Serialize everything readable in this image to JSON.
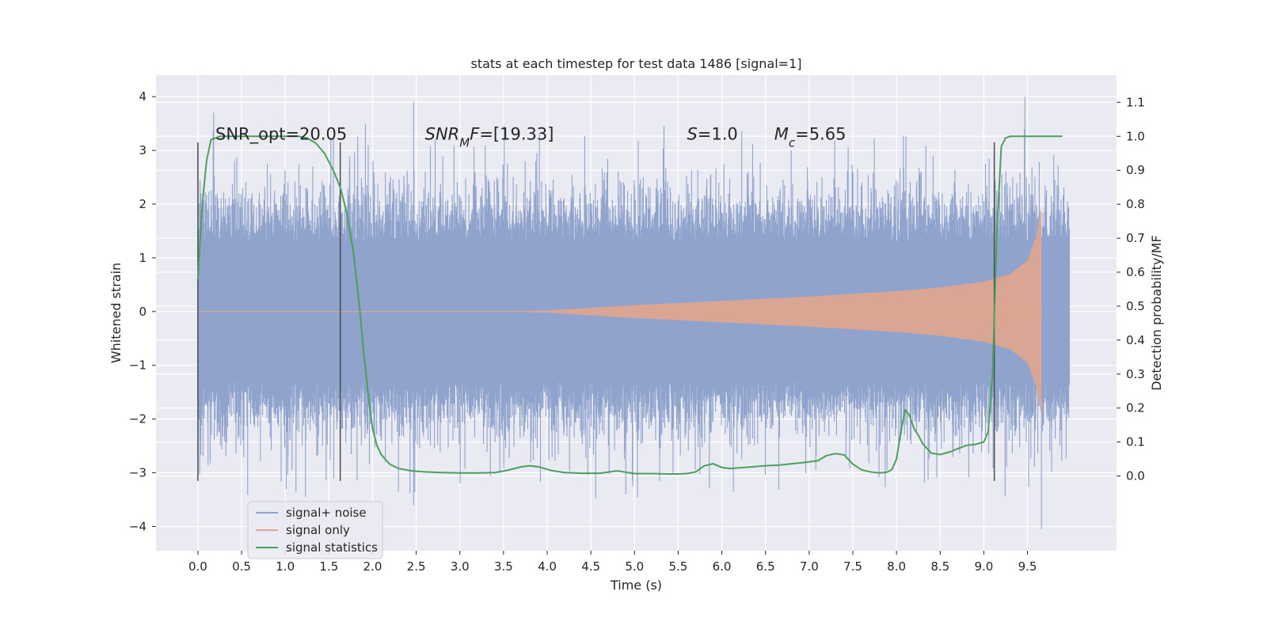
{
  "chart_data": {
    "type": "line",
    "title": "stats at each timestep for test data 1486 [signal=1]",
    "xlabel": "Time (s)",
    "ylabel": "Whitened strain",
    "ylabel_right": "Detection probability/MF",
    "xlim": [
      -0.48,
      10.52
    ],
    "ylim": [
      -4.45,
      4.4
    ],
    "ylim_right": [
      -0.22,
      1.18
    ],
    "x_ticks": [
      "0.0",
      "0.5",
      "1.0",
      "1.5",
      "2.0",
      "2.5",
      "3.0",
      "3.5",
      "4.0",
      "4.5",
      "5.0",
      "5.5",
      "6.0",
      "6.5",
      "7.0",
      "7.5",
      "8.0",
      "8.5",
      "9.0",
      "9.5"
    ],
    "y_ticks": [
      "−4",
      "−3",
      "−2",
      "−1",
      "0",
      "1",
      "2",
      "3",
      "4"
    ],
    "y_right_ticks": [
      "0.0",
      "0.1",
      "0.2",
      "0.3",
      "0.4",
      "0.5",
      "0.6",
      "0.7",
      "0.8",
      "0.9",
      "1.0",
      "1.1"
    ],
    "grid": true,
    "legend_position": "lower-left",
    "annotations": [
      {
        "text": "SNR_opt=20.05",
        "x": 0.2,
        "y": 3.2
      },
      {
        "text_parts": [
          {
            "t": "SNR",
            "italic": true
          },
          {
            "t": "M",
            "italic": true,
            "sub": true
          },
          {
            "t": "F",
            "italic": true
          },
          {
            "t": "=[19.33]"
          }
        ],
        "x": 2.6,
        "y": 3.2
      },
      {
        "text_parts": [
          {
            "t": "S",
            "italic": true
          },
          {
            "t": "=1.0"
          }
        ],
        "x": 5.6,
        "y": 3.2
      },
      {
        "text_parts": [
          {
            "t": "M",
            "italic": true
          },
          {
            "t": "c",
            "italic": true,
            "sub": true
          },
          {
            "t": "=5.65"
          }
        ],
        "x": 6.6,
        "y": 3.2
      }
    ],
    "vlines": [
      {
        "x": 0.0,
        "ymin": -3.15,
        "ymax": 3.15
      },
      {
        "x": 1.63,
        "ymin": -3.15,
        "ymax": 3.15
      },
      {
        "x": 9.12,
        "ymin": -3.15,
        "ymax": 3.15
      }
    ],
    "series": [
      {
        "name": "signal+ noise",
        "color": "#8fa3cc",
        "kind": "noise",
        "x_range": [
          0.0,
          9.98
        ],
        "band_envelope": 1.28,
        "spike_max": 4.0,
        "spike_min": -4.05
      },
      {
        "name": "signal only",
        "color": "#e0a68f",
        "kind": "chirp",
        "x_range": [
          0.0,
          9.66
        ],
        "amplitude_envelope": {
          "x": [
            3.5,
            4.0,
            5.0,
            6.0,
            7.0,
            8.0,
            8.5,
            9.0,
            9.3,
            9.5,
            9.6,
            9.66
          ],
          "amp": [
            0.0,
            0.02,
            0.12,
            0.2,
            0.28,
            0.38,
            0.45,
            0.56,
            0.7,
            0.95,
            1.4,
            1.95
          ]
        }
      },
      {
        "name": "signal statistics",
        "color": "#4c9f5c",
        "kind": "line",
        "axis": "right",
        "x": [
          0.0,
          0.05,
          0.1,
          0.15,
          0.25,
          0.5,
          0.75,
          1.0,
          1.15,
          1.25,
          1.35,
          1.45,
          1.55,
          1.63,
          1.7,
          1.78,
          1.85,
          1.9,
          1.95,
          2.0,
          2.05,
          2.1,
          2.15,
          2.2,
          2.3,
          2.45,
          2.6,
          2.8,
          3.0,
          3.2,
          3.4,
          3.55,
          3.7,
          3.8,
          3.9,
          4.05,
          4.2,
          4.4,
          4.6,
          4.8,
          5.0,
          5.2,
          5.4,
          5.5,
          5.6,
          5.7,
          5.8,
          5.9,
          6.0,
          6.1,
          6.2,
          6.35,
          6.5,
          6.65,
          6.8,
          6.95,
          7.1,
          7.2,
          7.3,
          7.4,
          7.5,
          7.6,
          7.7,
          7.8,
          7.85,
          7.9,
          7.95,
          8.0,
          8.05,
          8.1,
          8.15,
          8.2,
          8.25,
          8.3,
          8.4,
          8.5,
          8.6,
          8.7,
          8.8,
          8.9,
          9.0,
          9.05,
          9.1,
          9.15,
          9.2,
          9.25,
          9.3,
          9.4,
          9.5,
          9.6,
          9.7,
          9.8,
          9.9
        ],
        "y": [
          0.58,
          0.8,
          0.93,
          0.99,
          1.0,
          1.0,
          1.0,
          1.0,
          1.0,
          0.995,
          0.98,
          0.95,
          0.9,
          0.85,
          0.78,
          0.66,
          0.5,
          0.36,
          0.24,
          0.14,
          0.09,
          0.063,
          0.048,
          0.034,
          0.022,
          0.015,
          0.012,
          0.01,
          0.009,
          0.009,
          0.01,
          0.017,
          0.027,
          0.03,
          0.027,
          0.016,
          0.01,
          0.008,
          0.008,
          0.015,
          0.007,
          0.007,
          0.006,
          0.006,
          0.007,
          0.012,
          0.03,
          0.036,
          0.025,
          0.022,
          0.024,
          0.027,
          0.03,
          0.032,
          0.036,
          0.04,
          0.045,
          0.06,
          0.066,
          0.062,
          0.035,
          0.018,
          0.012,
          0.009,
          0.01,
          0.012,
          0.02,
          0.05,
          0.13,
          0.195,
          0.178,
          0.14,
          0.12,
          0.095,
          0.067,
          0.063,
          0.07,
          0.08,
          0.09,
          0.093,
          0.1,
          0.13,
          0.3,
          0.72,
          0.97,
          0.995,
          1.0,
          1.0,
          1.0,
          1.0,
          1.0,
          1.0,
          1.0
        ]
      }
    ]
  }
}
